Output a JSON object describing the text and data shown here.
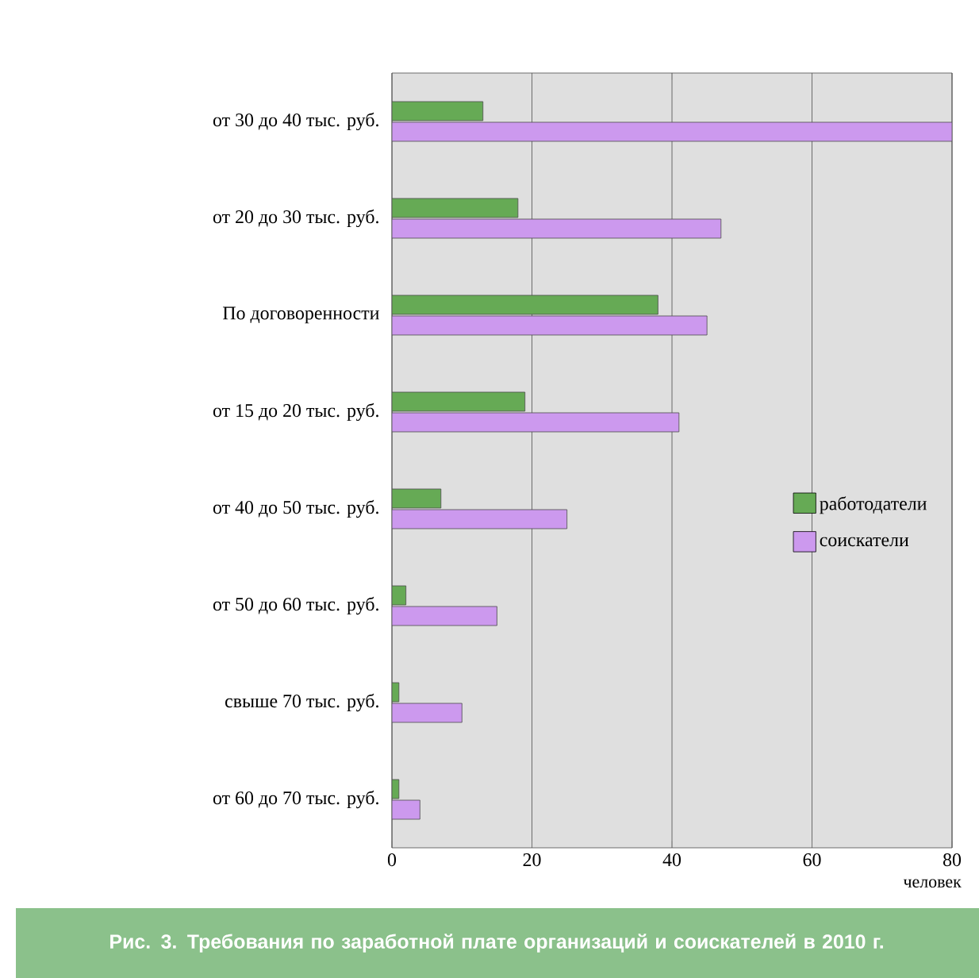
{
  "chart_data": {
    "type": "bar",
    "orientation": "horizontal",
    "title": "Рис. 3. Требования по заработной плате организаций и соискателей в 2010 г.",
    "xlabel": "человек",
    "categories": [
      "от 30 до 40 тыс. руб.",
      "от 20 до 30 тыс. руб.",
      "По договоренности",
      "от 15 до 20 тыс. руб.",
      "от 40 до 50 тыс. руб.",
      "от 50 до 60 тыс. руб.",
      "свыше 70 тыс. руб.",
      "от 60 до 70 тыс. руб."
    ],
    "series": [
      {
        "name": "работодатели",
        "color": "#66aa55",
        "values": [
          13,
          18,
          38,
          19,
          7,
          2,
          1,
          1
        ]
      },
      {
        "name": "соискатели",
        "color": "#cc99ee",
        "values": [
          80,
          47,
          45,
          41,
          25,
          15,
          10,
          4
        ]
      }
    ],
    "xlim": [
      0,
      80
    ],
    "xticks": [
      0,
      20,
      40,
      60,
      80
    ],
    "grid": "x",
    "legend": "right"
  }
}
